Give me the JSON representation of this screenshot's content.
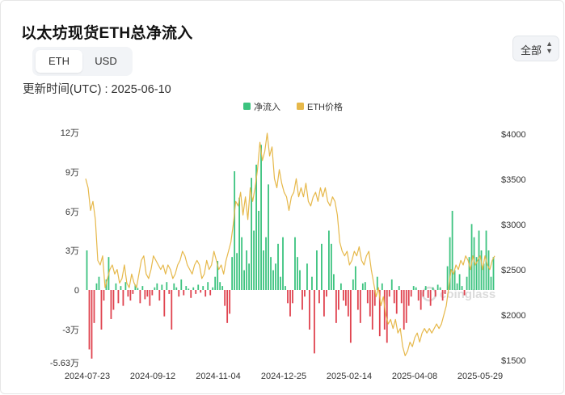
{
  "header": {
    "title": "以太坊现货ETH总净流入",
    "unit_options": [
      "ETH",
      "USD"
    ],
    "active_unit": "ETH",
    "updated_text": "更新时间(UTC) : 2025-06-10",
    "range_select_value": "全部"
  },
  "colors": {
    "inflow": "#3cc37f",
    "outflow": "#e0434f",
    "price": "#e6b84a",
    "grid": "#eeeeee",
    "toggle_bg": "#f2f4f7"
  },
  "icons": {
    "range_chevron": "chevron-up-down-icon",
    "watermark": "coinglass-logo-icon"
  },
  "watermark": {
    "text": "coinglass"
  },
  "chart_data": {
    "type": "bar",
    "title": "",
    "legend": {
      "position": "top-center",
      "entries": [
        "净流入",
        "ETH价格"
      ]
    },
    "grid": false,
    "x_tick_labels": [
      "2024-07-23",
      "2024-09-12",
      "2024-11-04",
      "2024-12-25",
      "2025-02-14",
      "2025-04-08",
      "2025-05-29"
    ],
    "left_axis": {
      "ticks": [
        120000,
        90000,
        60000,
        30000,
        0,
        -30000,
        -56300
      ],
      "tick_labels": [
        "12万",
        "9万",
        "6万",
        "3万",
        "0",
        "-3万",
        "-5.63万"
      ],
      "range": [
        -56300,
        120000
      ]
    },
    "right_axis": {
      "ticks": [
        4000,
        3500,
        3000,
        2500,
        2000,
        1500
      ],
      "tick_labels": [
        "$4000",
        "$3500",
        "$3000",
        "$2500",
        "$2000",
        "$1500"
      ],
      "range": [
        1450,
        4020
      ]
    },
    "date_range": [
      "2024-07-23",
      "2025-06-09"
    ],
    "series": [
      {
        "name": "净流入",
        "type": "bar",
        "unit": "ETH",
        "values": [
          30000,
          -45000,
          -52000,
          -25000,
          5000,
          10000,
          -30000,
          -8000,
          8000,
          25000,
          -22000,
          -15000,
          5000,
          -10000,
          3000,
          -12000,
          6000,
          -5000,
          -8000,
          -3000,
          4000,
          1500,
          -10000,
          3000,
          -7000,
          -5000,
          -12000,
          -4000,
          2000,
          5000,
          -8000,
          4000,
          -20000,
          6000,
          -3000,
          -30000,
          5000,
          2000,
          -5000,
          8000,
          -4000,
          3000,
          1000,
          -6000,
          2000,
          -3000,
          4000,
          -2000,
          3000,
          -5000,
          6000,
          -4000,
          2000,
          10000,
          22000,
          6000,
          3000,
          -12000,
          -25000,
          -18000,
          25000,
          90000,
          28000,
          70000,
          40000,
          15000,
          30000,
          20000,
          85000,
          45000,
          95000,
          60000,
          110000,
          30000,
          40000,
          80000,
          25000,
          15000,
          20000,
          35000,
          10000,
          40000,
          3000,
          -10000,
          -20000,
          -10000,
          40000,
          25000,
          15000,
          -15000,
          -5000,
          20000,
          -30000,
          10000,
          -48000,
          30000,
          -10000,
          35000,
          -20000,
          -5000,
          45000,
          35000,
          12000,
          -25000,
          -15000,
          5000,
          -8000,
          -12000,
          -20000,
          -40000,
          8000,
          18000,
          -15000,
          -25000,
          5000,
          6000,
          -10000,
          -20000,
          -30000,
          -12000,
          10000,
          -35000,
          5000,
          -30000,
          -40000,
          -5000,
          8000,
          -10000,
          -18000,
          3000,
          -10000,
          -30000,
          -25000,
          -12000,
          -5000,
          3000,
          2000,
          -8000,
          -15000,
          -5000,
          3000,
          -6000,
          -12000,
          2000,
          -5000,
          4000,
          2000,
          -8000,
          -3000,
          18000,
          40000,
          60000,
          15000,
          5000,
          12000,
          3000,
          -4000,
          10000,
          25000,
          50000,
          40000,
          25000,
          45000,
          30000,
          20000,
          45000,
          30000,
          10000,
          25000
        ]
      },
      {
        "name": "ETH价格",
        "type": "line",
        "unit": "USD",
        "values": [
          3500,
          3400,
          3150,
          3250,
          3050,
          2600,
          2550,
          2650,
          2300,
          2400,
          2500,
          2550,
          2450,
          2500,
          2350,
          2400,
          2550,
          2350,
          2300,
          2450,
          2350,
          2300,
          2450,
          2600,
          2650,
          2450,
          2400,
          2500,
          2650,
          2600,
          2550,
          2500,
          2550,
          2450,
          2550,
          2500,
          2400,
          2450,
          2550,
          2600,
          2700,
          2650,
          2550,
          2500,
          2450,
          2550,
          2600,
          2550,
          2400,
          2450,
          2600,
          2500,
          2550,
          2700,
          2600,
          2500,
          2550,
          2450,
          2600,
          2700,
          2800,
          3000,
          3250,
          3200,
          3350,
          3100,
          3300,
          3050,
          3400,
          3250,
          3400,
          3600,
          3900,
          3700,
          3800,
          4000,
          3750,
          3850,
          3500,
          3400,
          3600,
          3450,
          3350,
          3300,
          3150,
          3300,
          3350,
          3500,
          3300,
          3400,
          3300,
          3450,
          3250,
          3200,
          3300,
          3350,
          3250,
          3400,
          3300,
          3400,
          3250,
          3200,
          3300,
          3250,
          3100,
          2800,
          2700,
          2650,
          2700,
          2550,
          2600,
          2700,
          2650,
          2750,
          2600,
          2550,
          2650,
          2700,
          2500,
          2350,
          2200,
          2300,
          2100,
          2200,
          2000,
          1900,
          1950,
          1850,
          1950,
          1800,
          1850,
          1650,
          1550,
          1600,
          1700,
          1650,
          1750,
          1800,
          1700,
          1800,
          1850,
          1800,
          1850,
          1800,
          1850,
          1900,
          1850,
          1900,
          2000,
          2100,
          2300,
          2500,
          2450,
          2550,
          2500,
          2600,
          2550,
          2650,
          2600,
          2500,
          2650,
          2550,
          2600,
          2650,
          2500,
          2650,
          2550,
          2500,
          2600,
          2650
        ]
      }
    ]
  }
}
